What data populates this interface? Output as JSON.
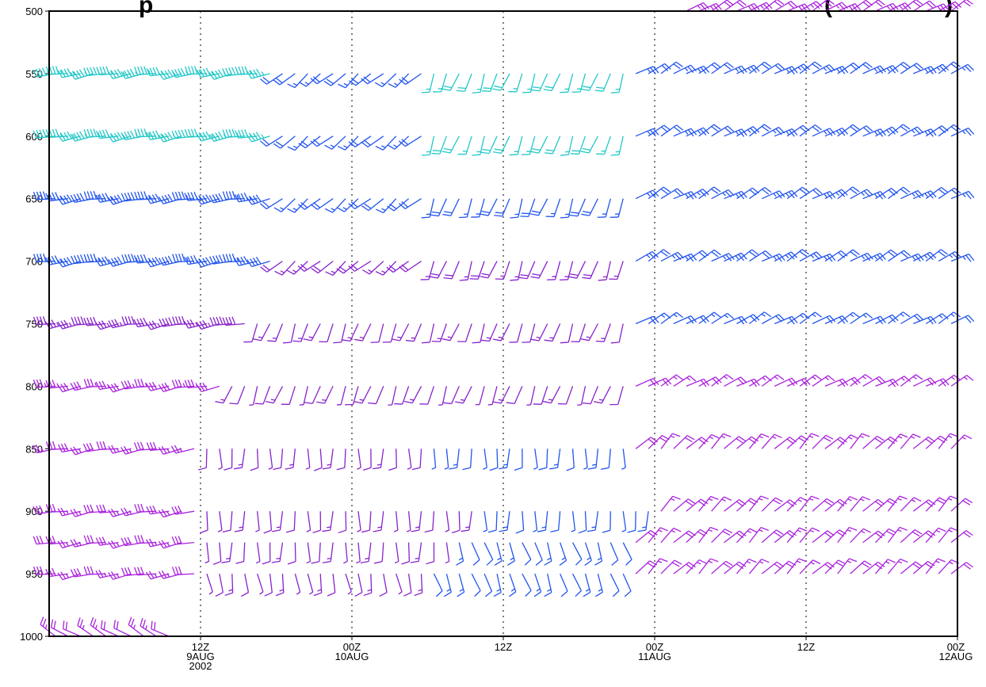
{
  "chart_data": {
    "type": "wind-barbs",
    "title_visible_fragment_left": "p",
    "title_visible_fragment_right": "(",
    "title_visible_fragment_end": ")",
    "ylim": [
      500,
      1000
    ],
    "y_inverted": true,
    "y_ticks": [
      "500",
      "550",
      "600",
      "650",
      "700",
      "750",
      "800",
      "850",
      "900",
      "950",
      "1000"
    ],
    "x_ticks": [
      {
        "hours": 12,
        "label": [
          "12Z",
          "9AUG",
          "2002"
        ]
      },
      {
        "hours": 24,
        "label": [
          "00Z",
          "10AUG"
        ]
      },
      {
        "hours": 36,
        "label": [
          "12Z"
        ]
      },
      {
        "hours": 48,
        "label": [
          "00Z",
          "11AUG"
        ]
      },
      {
        "hours": 60,
        "label": [
          "12Z"
        ]
      },
      {
        "hours": 72,
        "label": [
          "00Z",
          "12AUG"
        ]
      }
    ],
    "x_range_hours": [
      0,
      72
    ],
    "grid": "dotted-vertical",
    "levels": [
      550,
      600,
      650,
      700,
      750,
      800,
      850,
      900,
      925,
      950,
      1000
    ],
    "colors": {
      "cyan": "#22c8c8",
      "blue": "#2255ee",
      "purple": "#8822cc",
      "violet": "#aa22dd"
    },
    "segments": [
      {
        "level": 550,
        "from": 0,
        "to": 18,
        "dir": 260,
        "speed": 50,
        "color": "cyan"
      },
      {
        "level": 550,
        "from": 18,
        "to": 30,
        "dir": 230,
        "speed": 20,
        "color": "blue"
      },
      {
        "level": 550,
        "from": 30,
        "to": 46,
        "dir": 200,
        "speed": 20,
        "color": "cyan"
      },
      {
        "level": 550,
        "from": 46,
        "to": 72,
        "dir": 60,
        "speed": 25,
        "color": "blue"
      },
      {
        "level": 600,
        "from": 0,
        "to": 18,
        "dir": 260,
        "speed": 50,
        "color": "cyan"
      },
      {
        "level": 600,
        "from": 18,
        "to": 30,
        "dir": 230,
        "speed": 20,
        "color": "blue"
      },
      {
        "level": 600,
        "from": 30,
        "to": 46,
        "dir": 200,
        "speed": 20,
        "color": "cyan"
      },
      {
        "level": 600,
        "from": 46,
        "to": 72,
        "dir": 60,
        "speed": 25,
        "color": "blue"
      },
      {
        "level": 650,
        "from": 0,
        "to": 18,
        "dir": 260,
        "speed": 45,
        "color": "blue"
      },
      {
        "level": 650,
        "from": 18,
        "to": 30,
        "dir": 230,
        "speed": 20,
        "color": "blue"
      },
      {
        "level": 650,
        "from": 30,
        "to": 46,
        "dir": 200,
        "speed": 20,
        "color": "blue"
      },
      {
        "level": 650,
        "from": 46,
        "to": 72,
        "dir": 60,
        "speed": 25,
        "color": "blue"
      },
      {
        "level": 700,
        "from": 0,
        "to": 18,
        "dir": 260,
        "speed": 45,
        "color": "blue"
      },
      {
        "level": 700,
        "from": 18,
        "to": 30,
        "dir": 230,
        "speed": 20,
        "color": "purple"
      },
      {
        "level": 700,
        "from": 30,
        "to": 46,
        "dir": 200,
        "speed": 20,
        "color": "purple"
      },
      {
        "level": 700,
        "from": 46,
        "to": 72,
        "dir": 60,
        "speed": 25,
        "color": "blue"
      },
      {
        "level": 750,
        "from": 0,
        "to": 16,
        "dir": 260,
        "speed": 40,
        "color": "purple"
      },
      {
        "level": 750,
        "from": 16,
        "to": 46,
        "dir": 200,
        "speed": 15,
        "color": "purple"
      },
      {
        "level": 750,
        "from": 46,
        "to": 72,
        "dir": 60,
        "speed": 20,
        "color": "blue"
      },
      {
        "level": 800,
        "from": 0,
        "to": 14,
        "dir": 260,
        "speed": 35,
        "color": "violet"
      },
      {
        "level": 800,
        "from": 14,
        "to": 46,
        "dir": 200,
        "speed": 12,
        "color": "purple"
      },
      {
        "level": 800,
        "from": 46,
        "to": 72,
        "dir": 60,
        "speed": 20,
        "color": "violet"
      },
      {
        "level": 850,
        "from": 0,
        "to": 12,
        "dir": 260,
        "speed": 30,
        "color": "violet"
      },
      {
        "level": 850,
        "from": 12,
        "to": 30,
        "dir": 180,
        "speed": 12,
        "color": "purple"
      },
      {
        "level": 850,
        "from": 30,
        "to": 46,
        "dir": 180,
        "speed": 12,
        "color": "blue"
      },
      {
        "level": 850,
        "from": 46,
        "to": 72,
        "dir": 45,
        "speed": 20,
        "color": "violet"
      },
      {
        "level": 900,
        "from": 0,
        "to": 12,
        "dir": 260,
        "speed": 30,
        "color": "violet"
      },
      {
        "level": 900,
        "from": 12,
        "to": 34,
        "dir": 180,
        "speed": 12,
        "color": "purple"
      },
      {
        "level": 900,
        "from": 34,
        "to": 48,
        "dir": 180,
        "speed": 12,
        "color": "blue"
      },
      {
        "level": 900,
        "from": 48,
        "to": 72,
        "dir": 45,
        "speed": 20,
        "color": "violet"
      },
      {
        "level": 925,
        "from": 0,
        "to": 12,
        "dir": 260,
        "speed": 30,
        "color": "violet"
      },
      {
        "level": 925,
        "from": 12,
        "to": 32,
        "dir": 180,
        "speed": 12,
        "color": "purple"
      },
      {
        "level": 925,
        "from": 32,
        "to": 46,
        "dir": 160,
        "speed": 15,
        "color": "blue"
      },
      {
        "level": 925,
        "from": 46,
        "to": 72,
        "dir": 45,
        "speed": 20,
        "color": "violet"
      },
      {
        "level": 950,
        "from": 0,
        "to": 12,
        "dir": 260,
        "speed": 30,
        "color": "violet"
      },
      {
        "level": 950,
        "from": 12,
        "to": 30,
        "dir": 170,
        "speed": 12,
        "color": "purple"
      },
      {
        "level": 950,
        "from": 30,
        "to": 46,
        "dir": 160,
        "speed": 15,
        "color": "blue"
      },
      {
        "level": 950,
        "from": 46,
        "to": 72,
        "dir": 45,
        "speed": 20,
        "color": "violet"
      },
      {
        "level": 1000,
        "from": 0,
        "to": 10,
        "dir": 300,
        "speed": 25,
        "color": "violet"
      },
      {
        "level": 500,
        "from": 50,
        "to": 72,
        "dir": 60,
        "speed": 25,
        "color": "violet"
      }
    ]
  }
}
